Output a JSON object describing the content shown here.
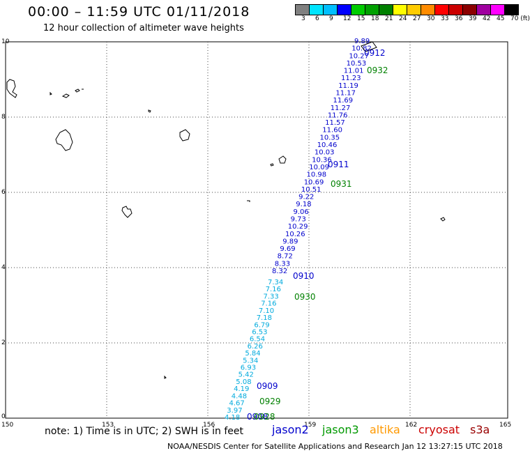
{
  "title": "00:00 – 11:59 UTC 01/11/2018",
  "subtitle": "12 hour collection of altimeter wave heights",
  "color_scale": {
    "labels": [
      "3",
      "6",
      "9",
      "12",
      "15",
      "18",
      "21",
      "24",
      "27",
      "30",
      "33",
      "36",
      "39",
      "42",
      "45",
      "70 (ft)"
    ],
    "colors": [
      "#808080",
      "#00e5ff",
      "#00bfff",
      "#0000ff",
      "#00cc00",
      "#00a000",
      "#008000",
      "#ffff00",
      "#ffcc00",
      "#ff8c00",
      "#ff0000",
      "#cc0000",
      "#8b0000",
      "#a000a0",
      "#ff00ff",
      "#000000"
    ]
  },
  "axes": {
    "x_ticks": [
      "150",
      "153",
      "156",
      "159",
      "162",
      "165"
    ],
    "y_ticks": [
      "0",
      "2",
      "4",
      "6",
      "8",
      "10"
    ]
  },
  "passes": {
    "jason2": {
      "color": "#0000cc",
      "labels": [
        "0912",
        "0911",
        "0910",
        "0909",
        "0908"
      ],
      "values": [
        "9.89",
        "10.82",
        "10.27",
        "10.53",
        "11.01",
        "11.23",
        "11.19",
        "11.17",
        "11.69",
        "11.27",
        "11.76",
        "11.57",
        "11.60",
        "10.35",
        "10.46",
        "10.03",
        "10.36",
        "10.09",
        "10.98",
        "10.69",
        "10.51",
        "9.22",
        "9.18",
        "9.06",
        "9.73",
        "10.29",
        "10.26",
        "9.89",
        "9.69",
        "8.72",
        "8.33",
        "8.32"
      ]
    },
    "jason3": {
      "color": "#008000",
      "labels": [
        "0932",
        "0931",
        "0930",
        "0929",
        "0928"
      ]
    },
    "cyan_values": [
      "7.34",
      "7.16",
      "7.33",
      "7.16",
      "7.10",
      "7.18",
      "6.79",
      "6.53",
      "6.54",
      "6.26",
      "5.84",
      "5.34",
      "6.93",
      "5.42",
      "5.08",
      "4.19",
      "4.48",
      "4.67",
      "3.97",
      "4.18"
    ]
  },
  "note": "note:  1) Time is in UTC;  2) SWH is in feet",
  "satellites": [
    {
      "name": "jason2",
      "color": "#0000cc"
    },
    {
      "name": "jason3",
      "color": "#009900"
    },
    {
      "name": "altika",
      "color": "#ff9900"
    },
    {
      "name": "cryosat",
      "color": "#cc0000"
    },
    {
      "name": "s3a",
      "color": "#990000"
    }
  ],
  "credit": "NOAA/NESDIS Center for Satellite Applications and Research    Jan 12 13:27:15 UTC 2018"
}
